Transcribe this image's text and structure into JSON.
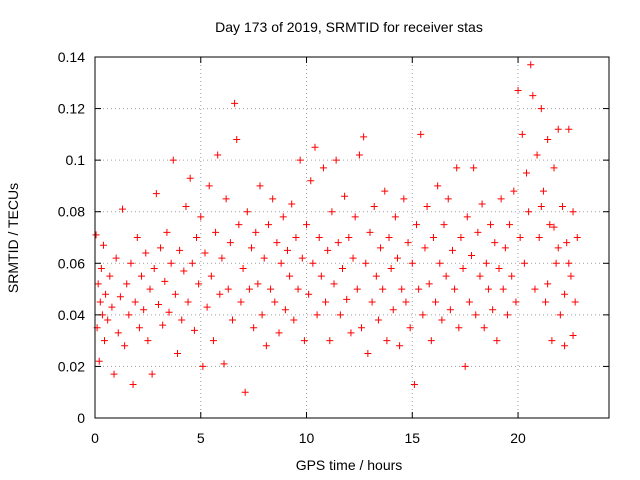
{
  "chart_data": {
    "type": "scatter",
    "title": "Day 173 of 2019, SRMTID for receiver stas",
    "xlabel": "GPS time / hours",
    "ylabel": "SRMTID / TECUs",
    "xlim": [
      0,
      24.3
    ],
    "ylim": [
      0,
      0.14
    ],
    "x_ticks": [
      0,
      5,
      10,
      15,
      20
    ],
    "x_tick_labels": [
      "0",
      "5",
      "10",
      "15",
      "20"
    ],
    "y_ticks": [
      0,
      0.02,
      0.04,
      0.06,
      0.08,
      0.1,
      0.12,
      0.14
    ],
    "y_tick_labels": [
      "0",
      "0.02",
      "0.04",
      "0.06",
      "0.08",
      "0.1",
      "0.12",
      "0.14"
    ],
    "grid": true,
    "marker": "+",
    "color": "#ff0000",
    "series": [
      {
        "name": "SRMTID",
        "points": [
          [
            0.05,
            0.071
          ],
          [
            0.1,
            0.035
          ],
          [
            0.15,
            0.052
          ],
          [
            0.2,
            0.022
          ],
          [
            0.25,
            0.045
          ],
          [
            0.3,
            0.058
          ],
          [
            0.35,
            0.04
          ],
          [
            0.4,
            0.067
          ],
          [
            0.45,
            0.03
          ],
          [
            0.5,
            0.048
          ],
          [
            0.6,
            0.038
          ],
          [
            0.7,
            0.055
          ],
          [
            0.8,
            0.043
          ],
          [
            0.9,
            0.017
          ],
          [
            1.0,
            0.062
          ],
          [
            1.1,
            0.033
          ],
          [
            1.2,
            0.047
          ],
          [
            1.3,
            0.081
          ],
          [
            1.4,
            0.028
          ],
          [
            1.5,
            0.052
          ],
          [
            1.6,
            0.04
          ],
          [
            1.7,
            0.06
          ],
          [
            1.8,
            0.013
          ],
          [
            1.9,
            0.045
          ],
          [
            2.0,
            0.07
          ],
          [
            2.1,
            0.035
          ],
          [
            2.2,
            0.055
          ],
          [
            2.3,
            0.042
          ],
          [
            2.4,
            0.064
          ],
          [
            2.5,
            0.03
          ],
          [
            2.6,
            0.05
          ],
          [
            2.7,
            0.017
          ],
          [
            2.8,
            0.058
          ],
          [
            2.9,
            0.087
          ],
          [
            3.0,
            0.044
          ],
          [
            3.1,
            0.066
          ],
          [
            3.2,
            0.036
          ],
          [
            3.3,
            0.053
          ],
          [
            3.4,
            0.072
          ],
          [
            3.5,
            0.041
          ],
          [
            3.6,
            0.06
          ],
          [
            3.7,
            0.1
          ],
          [
            3.8,
            0.048
          ],
          [
            3.9,
            0.025
          ],
          [
            4.0,
            0.065
          ],
          [
            4.1,
            0.038
          ],
          [
            4.2,
            0.057
          ],
          [
            4.3,
            0.082
          ],
          [
            4.4,
            0.045
          ],
          [
            4.5,
            0.093
          ],
          [
            4.6,
            0.06
          ],
          [
            4.7,
            0.034
          ],
          [
            4.8,
            0.07
          ],
          [
            4.9,
            0.052
          ],
          [
            5.0,
            0.078
          ],
          [
            5.1,
            0.02
          ],
          [
            5.2,
            0.064
          ],
          [
            5.3,
            0.043
          ],
          [
            5.4,
            0.09
          ],
          [
            5.5,
            0.055
          ],
          [
            5.6,
            0.03
          ],
          [
            5.7,
            0.072
          ],
          [
            5.8,
            0.102
          ],
          [
            5.9,
            0.048
          ],
          [
            6.0,
            0.062
          ],
          [
            6.1,
            0.021
          ],
          [
            6.2,
            0.085
          ],
          [
            6.3,
            0.05
          ],
          [
            6.4,
            0.068
          ],
          [
            6.5,
            0.038
          ],
          [
            6.6,
            0.122
          ],
          [
            6.7,
            0.108
          ],
          [
            6.8,
            0.075
          ],
          [
            6.9,
            0.045
          ],
          [
            7.0,
            0.058
          ],
          [
            7.1,
            0.01
          ],
          [
            7.2,
            0.08
          ],
          [
            7.3,
            0.05
          ],
          [
            7.4,
            0.066
          ],
          [
            7.5,
            0.035
          ],
          [
            7.6,
            0.072
          ],
          [
            7.7,
            0.052
          ],
          [
            7.8,
            0.09
          ],
          [
            7.9,
            0.04
          ],
          [
            8.0,
            0.062
          ],
          [
            8.1,
            0.028
          ],
          [
            8.2,
            0.075
          ],
          [
            8.3,
            0.05
          ],
          [
            8.4,
            0.085
          ],
          [
            8.5,
            0.045
          ],
          [
            8.6,
            0.068
          ],
          [
            8.7,
            0.033
          ],
          [
            8.8,
            0.06
          ],
          [
            8.9,
            0.078
          ],
          [
            9.0,
            0.042
          ],
          [
            9.1,
            0.065
          ],
          [
            9.2,
            0.055
          ],
          [
            9.3,
            0.083
          ],
          [
            9.4,
            0.038
          ],
          [
            9.5,
            0.07
          ],
          [
            9.6,
            0.05
          ],
          [
            9.7,
            0.1
          ],
          [
            9.8,
            0.062
          ],
          [
            9.9,
            0.03
          ],
          [
            10.0,
            0.075
          ],
          [
            10.1,
            0.048
          ],
          [
            10.2,
            0.092
          ],
          [
            10.3,
            0.06
          ],
          [
            10.4,
            0.105
          ],
          [
            10.5,
            0.04
          ],
          [
            10.6,
            0.07
          ],
          [
            10.7,
            0.055
          ],
          [
            10.8,
            0.097
          ],
          [
            10.9,
            0.045
          ],
          [
            11.0,
            0.065
          ],
          [
            11.1,
            0.03
          ],
          [
            11.2,
            0.08
          ],
          [
            11.3,
            0.052
          ],
          [
            11.4,
            0.1
          ],
          [
            11.5,
            0.068
          ],
          [
            11.6,
            0.04
          ],
          [
            11.7,
            0.058
          ],
          [
            11.8,
            0.086
          ],
          [
            11.9,
            0.046
          ],
          [
            12.0,
            0.07
          ],
          [
            12.1,
            0.033
          ],
          [
            12.2,
            0.062
          ],
          [
            12.3,
            0.078
          ],
          [
            12.4,
            0.05
          ],
          [
            12.5,
            0.102
          ],
          [
            12.6,
            0.035
          ],
          [
            12.7,
            0.109
          ],
          [
            12.8,
            0.06
          ],
          [
            12.9,
            0.025
          ],
          [
            13.0,
            0.072
          ],
          [
            13.1,
            0.045
          ],
          [
            13.2,
            0.082
          ],
          [
            13.3,
            0.055
          ],
          [
            13.4,
            0.038
          ],
          [
            13.5,
            0.066
          ],
          [
            13.6,
            0.05
          ],
          [
            13.7,
            0.088
          ],
          [
            13.8,
            0.03
          ],
          [
            13.9,
            0.07
          ],
          [
            14.0,
            0.058
          ],
          [
            14.1,
            0.042
          ],
          [
            14.2,
            0.078
          ],
          [
            14.3,
            0.062
          ],
          [
            14.4,
            0.028
          ],
          [
            14.5,
            0.05
          ],
          [
            14.6,
            0.085
          ],
          [
            14.7,
            0.045
          ],
          [
            14.8,
            0.068
          ],
          [
            14.9,
            0.035
          ],
          [
            15.0,
            0.06
          ],
          [
            15.1,
            0.013
          ],
          [
            15.2,
            0.075
          ],
          [
            15.3,
            0.05
          ],
          [
            15.4,
            0.11
          ],
          [
            15.5,
            0.04
          ],
          [
            15.6,
            0.066
          ],
          [
            15.7,
            0.082
          ],
          [
            15.8,
            0.052
          ],
          [
            15.9,
            0.03
          ],
          [
            16.0,
            0.07
          ],
          [
            16.1,
            0.045
          ],
          [
            16.2,
            0.09
          ],
          [
            16.3,
            0.06
          ],
          [
            16.4,
            0.038
          ],
          [
            16.5,
            0.075
          ],
          [
            16.6,
            0.055
          ],
          [
            16.7,
            0.085
          ],
          [
            16.8,
            0.042
          ],
          [
            16.9,
            0.065
          ],
          [
            17.0,
            0.05
          ],
          [
            17.1,
            0.097
          ],
          [
            17.2,
            0.035
          ],
          [
            17.3,
            0.07
          ],
          [
            17.4,
            0.058
          ],
          [
            17.5,
            0.02
          ],
          [
            17.6,
            0.078
          ],
          [
            17.7,
            0.045
          ],
          [
            17.8,
            0.063
          ],
          [
            17.9,
            0.097
          ],
          [
            18.0,
            0.04
          ],
          [
            18.1,
            0.072
          ],
          [
            18.2,
            0.055
          ],
          [
            18.3,
            0.083
          ],
          [
            18.4,
            0.035
          ],
          [
            18.5,
            0.06
          ],
          [
            18.6,
            0.05
          ],
          [
            18.7,
            0.075
          ],
          [
            18.8,
            0.042
          ],
          [
            18.9,
            0.068
          ],
          [
            19.0,
            0.03
          ],
          [
            19.1,
            0.058
          ],
          [
            19.2,
            0.085
          ],
          [
            19.3,
            0.05
          ],
          [
            19.4,
            0.066
          ],
          [
            19.5,
            0.04
          ],
          [
            19.6,
            0.075
          ],
          [
            19.7,
            0.055
          ],
          [
            19.8,
            0.088
          ],
          [
            19.9,
            0.045
          ],
          [
            20.0,
            0.127
          ],
          [
            20.1,
            0.07
          ],
          [
            20.2,
            0.11
          ],
          [
            20.3,
            0.06
          ],
          [
            20.4,
            0.095
          ],
          [
            20.5,
            0.08
          ],
          [
            20.6,
            0.137
          ],
          [
            20.7,
            0.125
          ],
          [
            20.8,
            0.05
          ],
          [
            20.9,
            0.102
          ],
          [
            21.0,
            0.07
          ],
          [
            21.1,
            0.12
          ],
          [
            21.2,
            0.088
          ],
          [
            21.3,
            0.045
          ],
          [
            21.4,
            0.108
          ],
          [
            21.5,
            0.075
          ],
          [
            21.6,
            0.03
          ],
          [
            21.7,
            0.097
          ],
          [
            21.8,
            0.06
          ],
          [
            21.9,
            0.112
          ],
          [
            22.0,
            0.04
          ],
          [
            22.1,
            0.082
          ],
          [
            22.2,
            0.028
          ],
          [
            22.3,
            0.068
          ],
          [
            22.4,
            0.112
          ],
          [
            22.5,
            0.055
          ],
          [
            22.6,
            0.08
          ],
          [
            22.7,
            0.045
          ],
          [
            22.8,
            0.07
          ],
          [
            22.6,
            0.032
          ],
          [
            22.4,
            0.06
          ],
          [
            22.2,
            0.048
          ],
          [
            21.9,
            0.066
          ],
          [
            21.7,
            0.074
          ],
          [
            21.4,
            0.052
          ],
          [
            21.1,
            0.082
          ]
        ]
      }
    ]
  }
}
